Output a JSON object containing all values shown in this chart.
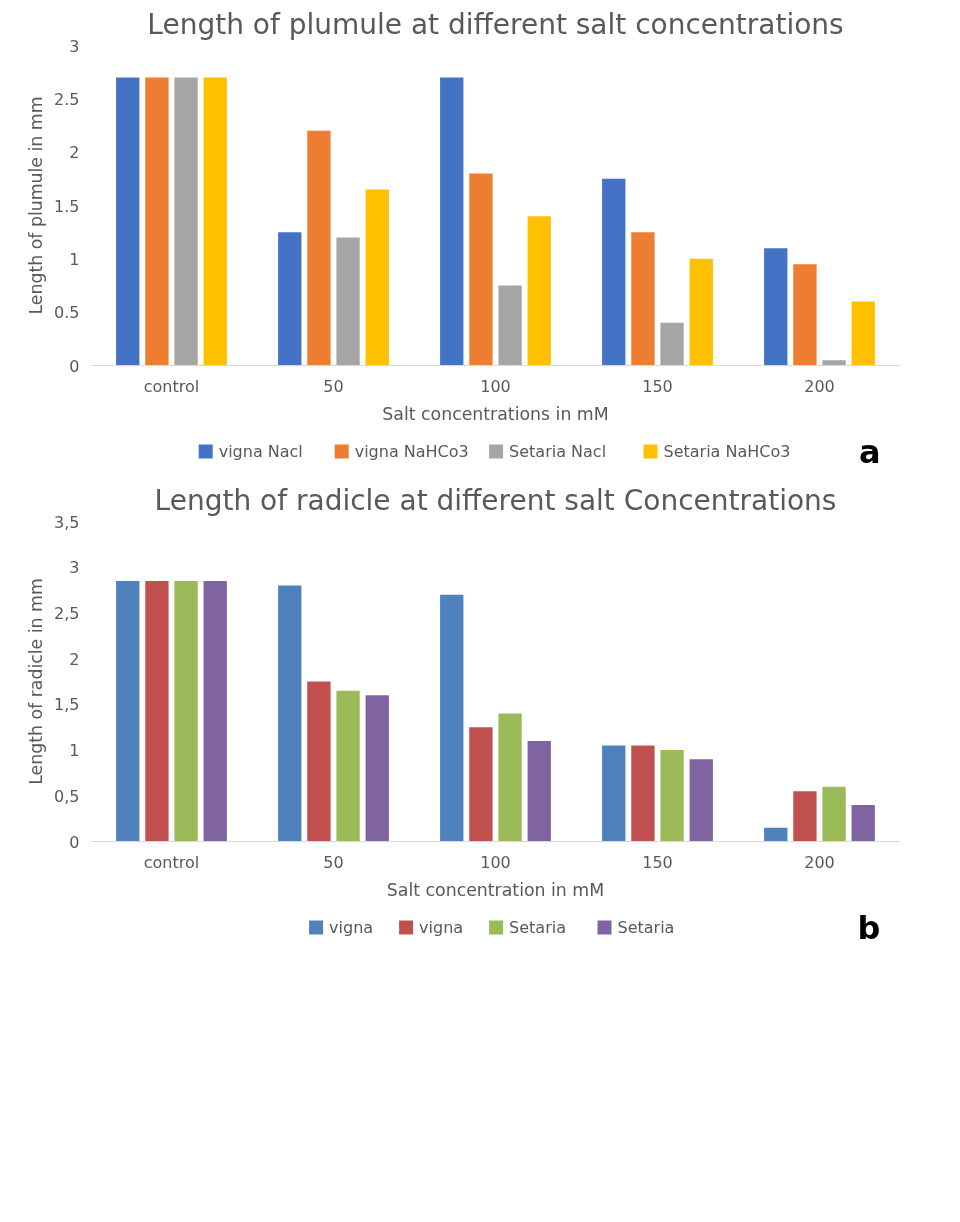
{
  "chart_data": [
    {
      "type": "bar",
      "title": "Length of plumule at different salt concentrations",
      "xlabel": "Salt concentrations in mM",
      "ylabel": "Length of plumule in mm",
      "categories": [
        "control",
        "50",
        "100",
        "150",
        "200"
      ],
      "series": [
        {
          "name": "vigna Nacl",
          "color": "#4472c4",
          "values": [
            2.7,
            1.25,
            2.7,
            1.75,
            1.1
          ]
        },
        {
          "name": "vigna NaHCo3",
          "color": "#ed7d31",
          "values": [
            2.7,
            2.2,
            1.8,
            1.25,
            0.95
          ]
        },
        {
          "name": "Setaria Nacl",
          "color": "#a5a5a5",
          "values": [
            2.7,
            1.2,
            0.75,
            0.4,
            0.05
          ]
        },
        {
          "name": "Setaria NaHCo3",
          "color": "#ffc000",
          "values": [
            2.7,
            1.65,
            1.4,
            1.0,
            0.6
          ]
        }
      ],
      "ylim": [
        0,
        3
      ],
      "yticks": [
        0,
        0.5,
        1,
        1.5,
        2,
        2.5,
        3
      ],
      "grid": false,
      "legend": "bottom",
      "annotations": [
        "a"
      ]
    },
    {
      "type": "bar",
      "title": "Length of radicle at different salt Concentrations",
      "xlabel": "Salt concentration in mM",
      "ylabel": "Length of radicle in mm",
      "categories": [
        "control",
        "50",
        "100",
        "150",
        "200"
      ],
      "series": [
        {
          "name": "vigna",
          "color": "#4f81bd",
          "values": [
            2.85,
            2.8,
            2.7,
            1.05,
            0.15
          ]
        },
        {
          "name": "vigna",
          "color": "#c0504d",
          "values": [
            2.85,
            1.75,
            1.25,
            1.05,
            0.55
          ]
        },
        {
          "name": "Setaria",
          "color": "#9bbb59",
          "values": [
            2.85,
            1.65,
            1.4,
            1.0,
            0.6
          ]
        },
        {
          "name": "Setaria",
          "color": "#8064a2",
          "values": [
            2.85,
            1.6,
            1.1,
            0.9,
            0.4
          ]
        }
      ],
      "ylim": [
        0,
        3.5
      ],
      "yticks": [
        0,
        {
          "value": 0.5,
          "label": "0,5"
        },
        1,
        {
          "value": 1.5,
          "label": "1,5"
        },
        2,
        {
          "value": 2.5,
          "label": "2,5"
        },
        3,
        {
          "value": 3.5,
          "label": "3,5"
        }
      ],
      "grid": false,
      "legend": "bottom",
      "annotations": [
        "b"
      ]
    }
  ]
}
